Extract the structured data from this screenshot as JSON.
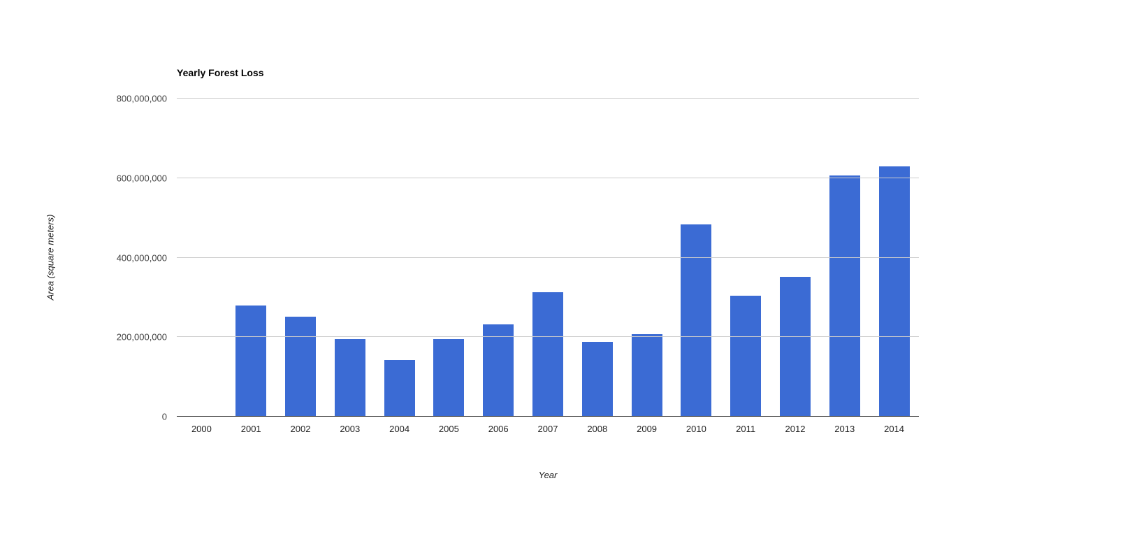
{
  "chart": {
    "title": "Yearly Forest Loss",
    "x_axis_title": "Year",
    "y_axis_title": "Area (square meters)"
  },
  "chart_data": {
    "type": "bar",
    "title": "Yearly Forest Loss",
    "xlabel": "Year",
    "ylabel": "Area (square meters)",
    "categories": [
      "2000",
      "2001",
      "2002",
      "2003",
      "2004",
      "2005",
      "2006",
      "2007",
      "2008",
      "2009",
      "2010",
      "2011",
      "2012",
      "2013",
      "2014"
    ],
    "values": [
      0,
      280000000,
      251000000,
      196000000,
      143000000,
      196000000,
      232000000,
      313000000,
      188000000,
      207000000,
      483000000,
      305000000,
      351000000,
      607000000,
      630000000
    ],
    "ylim": [
      0,
      800000000
    ],
    "ytick_labels": [
      "0",
      "200,000,000",
      "400,000,000",
      "600,000,000",
      "800,000,000"
    ],
    "grid": true,
    "legend": "none",
    "bar_color": "#3b6bd4",
    "gridline_color": "#cccccc",
    "baseline_color": "#333333"
  }
}
